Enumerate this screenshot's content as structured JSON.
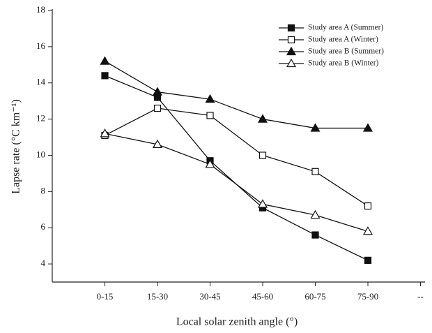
{
  "chart_data": {
    "type": "line",
    "xlabel": "Local solar zenith angle (°)",
    "ylabel": "Lapse rate (°C km⁻¹)",
    "categories": [
      "0-15",
      "15-30",
      "30-45",
      "45-60",
      "60-75",
      "75-90",
      "--"
    ],
    "series": [
      {
        "name": "Study area A (Summer)",
        "color": "#111111",
        "marker": "square",
        "filled": true,
        "values": [
          14.4,
          13.2,
          9.7,
          7.1,
          5.6,
          4.2,
          null
        ]
      },
      {
        "name": "Study area A (Winter)",
        "color": "#111111",
        "marker": "square",
        "filled": false,
        "values": [
          11.1,
          12.6,
          12.2,
          10.0,
          9.1,
          7.2,
          null
        ]
      },
      {
        "name": "Study area B (Summer)",
        "color": "#111111",
        "marker": "triangle",
        "filled": true,
        "values": [
          15.2,
          13.5,
          13.1,
          12.0,
          11.5,
          11.5,
          null
        ]
      },
      {
        "name": "Study area B (Winter)",
        "color": "#111111",
        "marker": "triangle",
        "filled": false,
        "values": [
          11.2,
          10.6,
          9.5,
          7.3,
          6.7,
          5.8,
          null
        ]
      }
    ],
    "ylim": [
      3,
      18
    ],
    "yticks": [
      4,
      6,
      8,
      10,
      12,
      14,
      16,
      18
    ],
    "grid": false,
    "legend": "upper right"
  }
}
